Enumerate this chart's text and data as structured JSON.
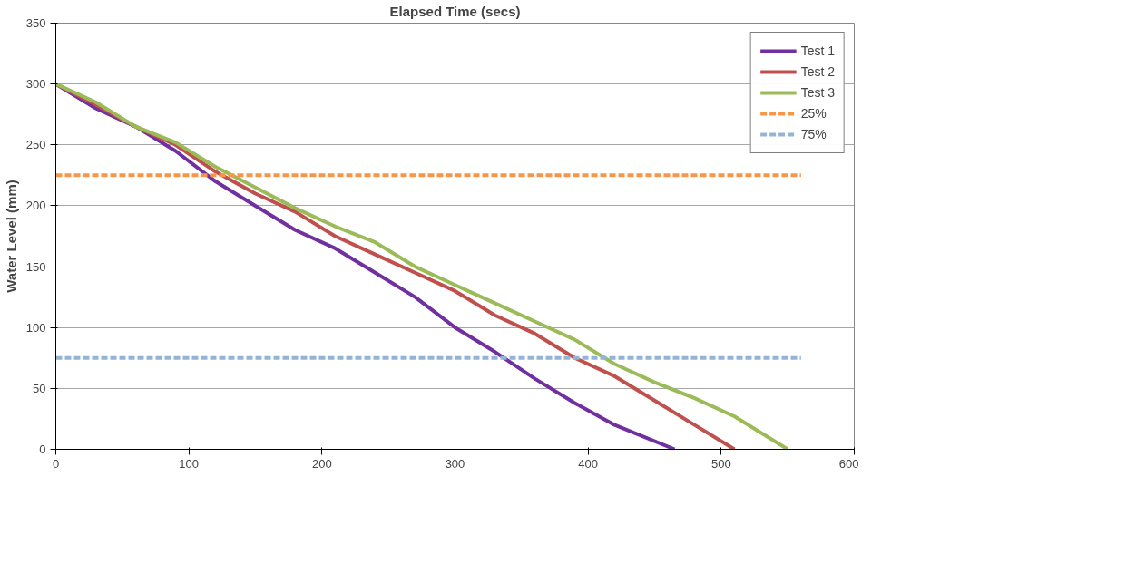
{
  "chart_data": {
    "type": "line",
    "xlabel": "Elapsed Time (secs)",
    "ylabel": "Water Level (mm)",
    "xlim": [
      0,
      600
    ],
    "xticks": [
      0,
      100,
      200,
      300,
      400,
      500,
      600
    ],
    "ylim": [
      0,
      350
    ],
    "yticks": [
      0,
      50,
      100,
      150,
      200,
      250,
      300,
      350
    ],
    "grid": true,
    "legend": "top right",
    "marker": "none",
    "line_style": "solid",
    "series": [
      {
        "name": "Test 1",
        "color": "#7030a0",
        "x": [
          0,
          30,
          60,
          90,
          120,
          150,
          180,
          210,
          240,
          270,
          300,
          330,
          360,
          390,
          420,
          465
        ],
        "values": [
          300,
          280,
          265,
          245,
          220,
          200,
          180,
          165,
          145,
          125,
          100,
          80,
          58,
          38,
          20,
          0
        ]
      },
      {
        "name": "Test 2",
        "color": "#c0504d",
        "x": [
          0,
          30,
          60,
          90,
          120,
          150,
          180,
          210,
          240,
          270,
          300,
          330,
          360,
          390,
          420,
          450,
          480,
          510
        ],
        "values": [
          300,
          283,
          265,
          250,
          228,
          210,
          195,
          175,
          160,
          145,
          130,
          110,
          95,
          75,
          60,
          40,
          20,
          0
        ]
      },
      {
        "name": "Test 3",
        "color": "#9bbb59",
        "x": [
          0,
          30,
          60,
          90,
          120,
          150,
          180,
          210,
          240,
          270,
          300,
          330,
          360,
          390,
          420,
          450,
          480,
          510,
          550
        ],
        "values": [
          300,
          285,
          265,
          252,
          232,
          215,
          198,
          183,
          170,
          150,
          135,
          120,
          105,
          90,
          70,
          55,
          42,
          27,
          0
        ]
      },
      {
        "name": "25%",
        "color": "#f79646",
        "line_style": "dashed",
        "x": [
          0,
          560
        ],
        "values": [
          225,
          225
        ]
      },
      {
        "name": "75%",
        "color": "#95b3d7",
        "line_style": "dashed",
        "x": [
          0,
          560
        ],
        "values": [
          75,
          75
        ]
      }
    ]
  }
}
